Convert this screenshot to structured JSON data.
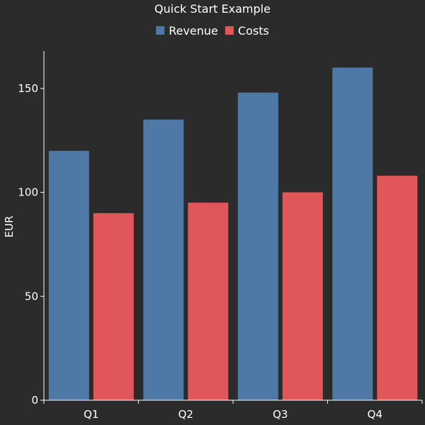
{
  "chart_data": {
    "type": "bar",
    "title": "Quick Start Example",
    "xlabel": "",
    "ylabel": "EUR",
    "categories": [
      "Q1",
      "Q2",
      "Q3",
      "Q4"
    ],
    "series": [
      {
        "name": "Revenue",
        "values": [
          120,
          135,
          148,
          160
        ],
        "color": "#4e79a7"
      },
      {
        "name": "Costs",
        "values": [
          90,
          95,
          100,
          108
        ],
        "color": "#e15759"
      }
    ],
    "ylim": [
      0,
      168
    ],
    "yticks": [
      0,
      50,
      100,
      150
    ],
    "grid": false,
    "legend": "top-center",
    "background": "#2b2b2b",
    "axis_color": "#ffffff"
  }
}
